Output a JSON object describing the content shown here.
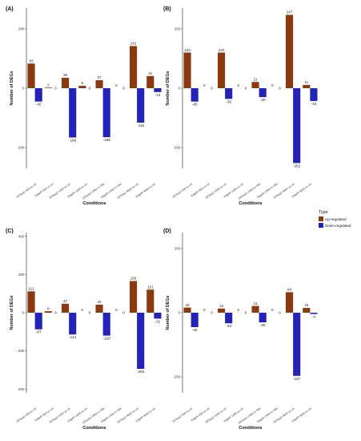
{
  "legend": {
    "title": "Type",
    "items": [
      {
        "label": "Up-regulated",
        "color": "#8B3A0F"
      },
      {
        "label": "Down-regulated",
        "color": "#2323B8"
      }
    ]
  },
  "chart_data": [
    {
      "type": "bar",
      "panel_label": "(A)",
      "xlabel": "Conditions",
      "ylabel": "Number of DEGs",
      "ylim": [
        -270,
        270
      ],
      "yticks": [
        -200,
        0,
        200
      ],
      "categories": [
        "DESeq2-30d-vs-ctrl",
        "EdgeR-30d-vs-ctrl",
        "DESeq2-140d-vs-ctrl",
        "EdgeR-140d-vs-ctrl",
        "DESeq2-140d-vs-30d",
        "EdgeR-140d-vs-30d",
        "DESeq2-468d-vs-ctrl",
        "EdgeR-468d-vs-ctrl"
      ],
      "series": [
        {
          "name": "Up-regulated",
          "values": [
            83,
            2,
            35,
            8,
            27,
            0,
            142,
            41
          ]
        },
        {
          "name": "Down-regulated",
          "values": [
            -45,
            0,
            -166,
            0,
            -165,
            0,
            -116,
            -13
          ]
        }
      ]
    },
    {
      "type": "bar",
      "panel_label": "(B)",
      "xlabel": "Conditions",
      "ylabel": "Number of DEGs",
      "ylim": [
        -270,
        270
      ],
      "yticks": [
        -200,
        0,
        200
      ],
      "categories": [
        "DESeq2-30d-vs-ctrl",
        "EdgeR-30d-vs-ctrl",
        "DESeq2-140d-vs-ctrl",
        "EdgeR-140d-vs-ctrl",
        "DESeq2-140d-vs-30d",
        "EdgeR-140d-vs-30d",
        "DESeq2-468d-vs-ctrl",
        "EdgeR-468d-vs-ctrl"
      ],
      "series": [
        {
          "name": "Up-regulated",
          "values": [
            120,
            0,
            120,
            0,
            21,
            0,
            247,
            11
          ]
        },
        {
          "name": "Down-regulated",
          "values": [
            -45,
            0,
            -36,
            0,
            -30,
            0,
            -252,
            -43
          ]
        }
      ]
    },
    {
      "type": "bar",
      "panel_label": "(C)",
      "xlabel": "Conditions",
      "ylabel": "Number of DEGs",
      "ylim": [
        -420,
        420
      ],
      "yticks": [
        -400,
        -200,
        0,
        200,
        400
      ],
      "categories": [
        "DESeq2-30d-vs-ctrl",
        "EdgeR-30d-vs-ctrl",
        "DESeq2-140d-vs-ctrl",
        "EdgeR-140d-vs-ctrl",
        "DESeq2-140d-vs-30d",
        "EdgeR-140d-vs-30d",
        "DESeq2-468d-vs-ctrl",
        "EdgeR-468d-vs-ctrl"
      ],
      "series": [
        {
          "name": "Up-regulated",
          "values": [
            112,
            8,
            47,
            0,
            42,
            0,
            166,
            121
          ]
        },
        {
          "name": "Down-regulated",
          "values": [
            -87,
            0,
            -114,
            0,
            -120,
            0,
            -294,
            -31
          ]
        }
      ]
    },
    {
      "type": "bar",
      "panel_label": "(D)",
      "xlabel": "Conditions",
      "ylabel": "Number of DEGs",
      "ylim": [
        -250,
        250
      ],
      "yticks": [
        -200,
        0,
        200
      ],
      "categories": [
        "DESeq2-30d-vs-ctrl",
        "EdgeR-30d-vs-ctrl",
        "DESeq2-140d-vs-ctrl",
        "EdgeR-140d-vs-ctrl",
        "DESeq2-140d-vs-30d",
        "EdgeR-140d-vs-30d",
        "DESeq2-468d-vs-ctrl",
        "EdgeR-468d-vs-ctrl"
      ],
      "series": [
        {
          "name": "Up-regulated",
          "values": [
            16,
            0,
            13,
            0,
            21,
            0,
            64,
            15
          ]
        },
        {
          "name": "Down-regulated",
          "values": [
            -45,
            0,
            -33,
            0,
            -30,
            0,
            -197,
            -4
          ]
        }
      ]
    }
  ]
}
